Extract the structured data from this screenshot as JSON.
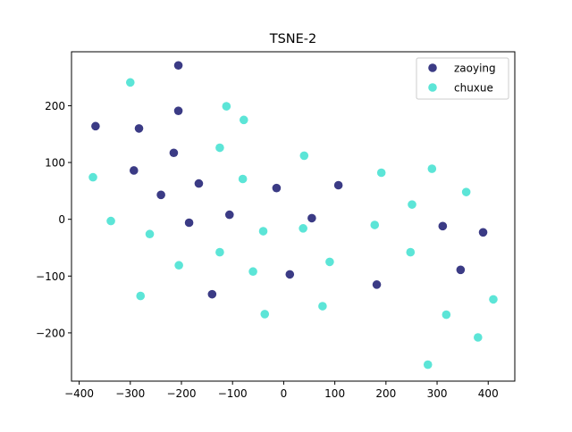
{
  "chart_data": {
    "type": "scatter",
    "title": "TSNE-2",
    "xlabel": "",
    "ylabel": "",
    "xlim": [
      -415,
      452
    ],
    "ylim": [
      -285,
      295
    ],
    "xticks": [
      -400,
      -300,
      -200,
      -100,
      0,
      100,
      200,
      300,
      400
    ],
    "yticks": [
      -200,
      -100,
      0,
      100,
      200
    ],
    "grid": false,
    "legend_position": "top-right",
    "series": [
      {
        "name": "zaoying",
        "color": "#191970",
        "points": [
          {
            "x": -368,
            "y": 164
          },
          {
            "x": -206,
            "y": 271
          },
          {
            "x": -283,
            "y": 160
          },
          {
            "x": -293,
            "y": 86
          },
          {
            "x": -206,
            "y": 191
          },
          {
            "x": -215,
            "y": 117
          },
          {
            "x": -240,
            "y": 43
          },
          {
            "x": -166,
            "y": 63
          },
          {
            "x": -185,
            "y": -6
          },
          {
            "x": -106,
            "y": 8
          },
          {
            "x": -14,
            "y": 55
          },
          {
            "x": 55,
            "y": 2
          },
          {
            "x": 107,
            "y": 60
          },
          {
            "x": 12,
            "y": -97
          },
          {
            "x": -140,
            "y": -132
          },
          {
            "x": 182,
            "y": -115
          },
          {
            "x": 311,
            "y": -12
          },
          {
            "x": 390,
            "y": -23
          },
          {
            "x": 346,
            "y": -89
          }
        ]
      },
      {
        "name": "chuxue",
        "color": "#40E0D0",
        "points": [
          {
            "x": -300,
            "y": 241
          },
          {
            "x": -112,
            "y": 199
          },
          {
            "x": -78,
            "y": 175
          },
          {
            "x": -125,
            "y": 126
          },
          {
            "x": 40,
            "y": 112
          },
          {
            "x": -373,
            "y": 74
          },
          {
            "x": -80,
            "y": 71
          },
          {
            "x": 191,
            "y": 82
          },
          {
            "x": 290,
            "y": 89
          },
          {
            "x": 357,
            "y": 48
          },
          {
            "x": 251,
            "y": 26
          },
          {
            "x": -338,
            "y": -3
          },
          {
            "x": -262,
            "y": -26
          },
          {
            "x": -40,
            "y": -21
          },
          {
            "x": 38,
            "y": -16
          },
          {
            "x": 178,
            "y": -10
          },
          {
            "x": -205,
            "y": -81
          },
          {
            "x": -125,
            "y": -58
          },
          {
            "x": -60,
            "y": -92
          },
          {
            "x": 90,
            "y": -75
          },
          {
            "x": 248,
            "y": -58
          },
          {
            "x": -280,
            "y": -135
          },
          {
            "x": -37,
            "y": -167
          },
          {
            "x": 76,
            "y": -153
          },
          {
            "x": 318,
            "y": -168
          },
          {
            "x": 410,
            "y": -141
          },
          {
            "x": 380,
            "y": -208
          },
          {
            "x": 282,
            "y": -256
          }
        ]
      }
    ]
  }
}
